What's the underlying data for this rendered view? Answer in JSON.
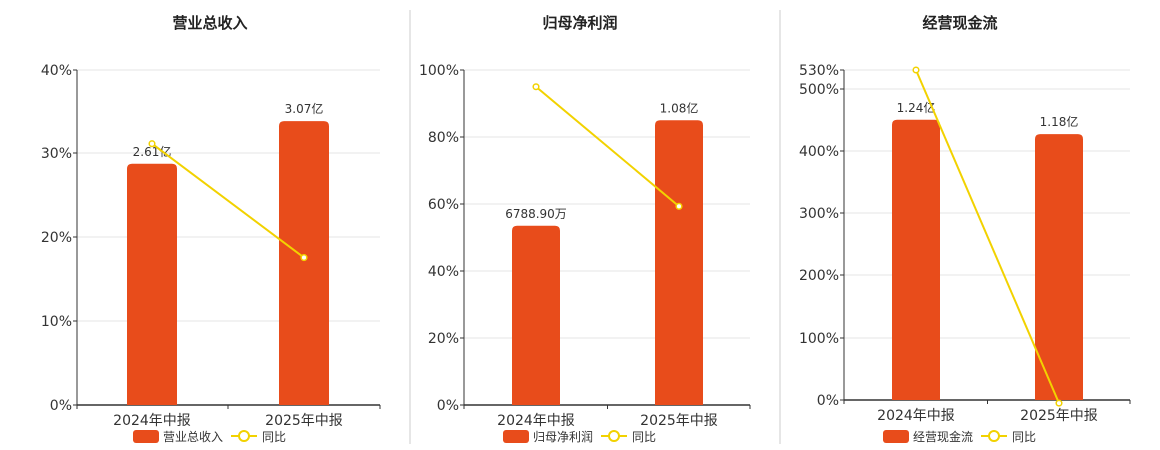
{
  "legend": {
    "line_label": "同比"
  },
  "colors": {
    "bar": "#e84c1b",
    "line": "#f2d200",
    "grid": "#e6e6e6",
    "axis": "#333333",
    "divider": "#cccccc"
  },
  "chart_data": [
    {
      "type": "bar",
      "title": "营业总收入",
      "categories": [
        "2024年中报",
        "2025年中报"
      ],
      "series": [
        {
          "name": "营业总收入",
          "type": "bar",
          "values": [
            2.61,
            3.07
          ],
          "labels": [
            "2.61亿",
            "3.07亿"
          ],
          "bar_axis_pct": [
            28.8,
            33.9
          ]
        },
        {
          "name": "同比",
          "type": "line",
          "values_pct": [
            31.2,
            17.6
          ]
        }
      ],
      "y_ticks": [
        "0%",
        "10%",
        "20%",
        "30%",
        "40%"
      ],
      "ylim_pct": [
        0,
        40
      ],
      "grid": true,
      "legend_position": "bottom"
    },
    {
      "type": "bar",
      "title": "归母净利润",
      "categories": [
        "2024年中报",
        "2025年中报"
      ],
      "series": [
        {
          "name": "归母净利润",
          "type": "bar",
          "values": [
            0.67889,
            1.08
          ],
          "labels": [
            "6788.90万",
            "1.08亿"
          ],
          "bar_axis_pct": [
            53.5,
            85.0
          ]
        },
        {
          "name": "同比",
          "type": "line",
          "values_pct": [
            95.0,
            59.3
          ]
        }
      ],
      "y_ticks": [
        "0%",
        "20%",
        "40%",
        "60%",
        "80%",
        "100%"
      ],
      "ylim_pct": [
        0,
        100
      ],
      "grid": true,
      "legend_position": "bottom"
    },
    {
      "type": "bar",
      "title": "经营现金流",
      "categories": [
        "2024年中报",
        "2025年中报"
      ],
      "series": [
        {
          "name": "经营现金流",
          "type": "bar",
          "values": [
            1.24,
            1.18
          ],
          "labels": [
            "1.24亿",
            "1.18亿"
          ],
          "bar_axis_pct": [
            450,
            427
          ]
        },
        {
          "name": "同比",
          "type": "line",
          "values_pct": [
            530,
            -5
          ]
        }
      ],
      "y_ticks": [
        "0%",
        "100%",
        "200%",
        "300%",
        "400%",
        "500%",
        "530%"
      ],
      "ylim_pct": [
        0,
        530
      ],
      "grid": true,
      "legend_position": "bottom"
    }
  ]
}
